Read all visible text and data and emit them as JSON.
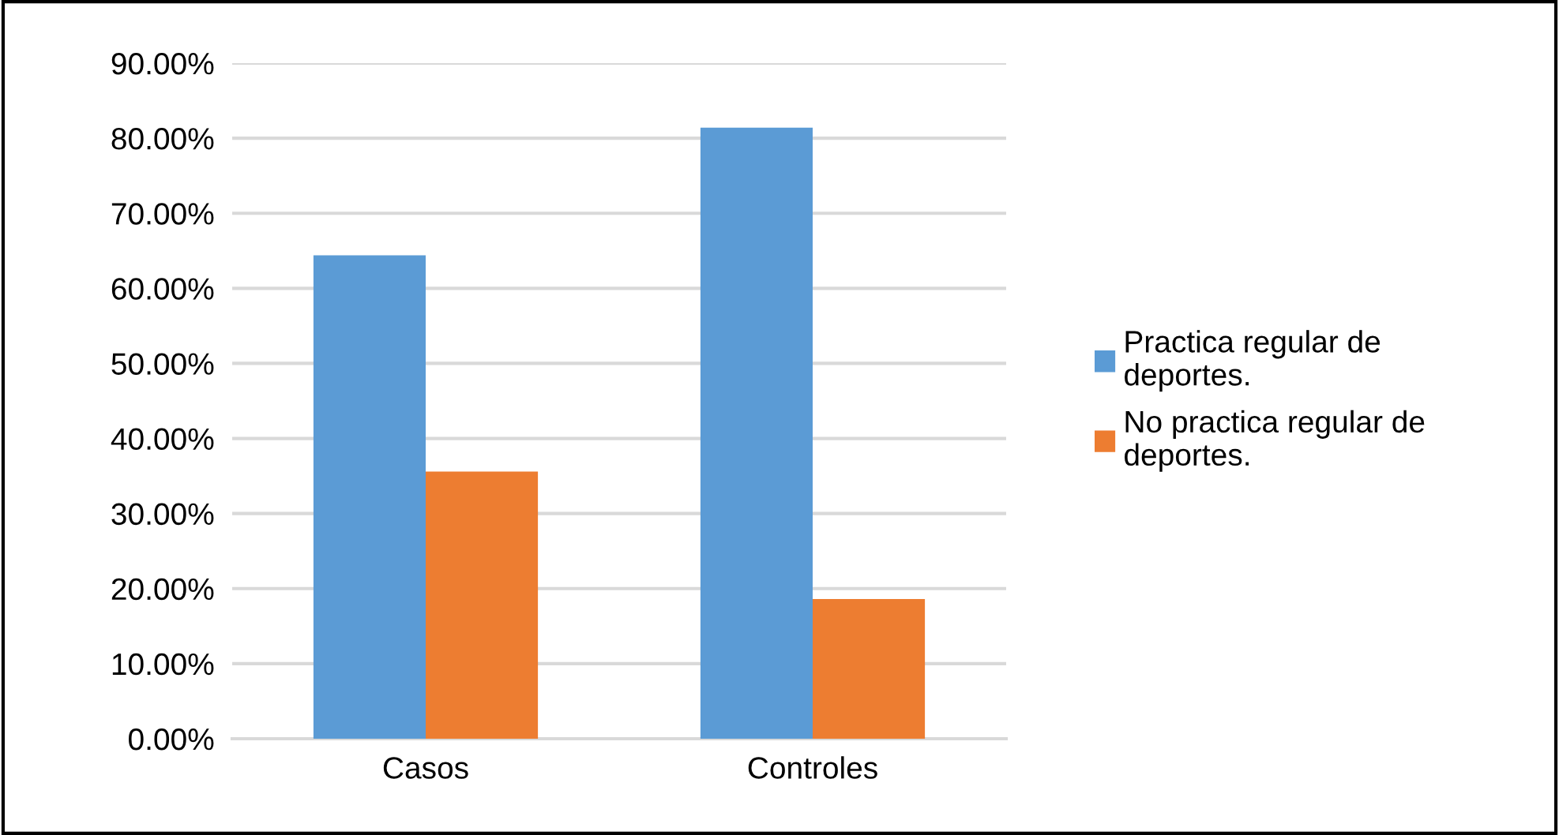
{
  "chart_data": {
    "type": "bar",
    "categories": [
      "Casos",
      "Controles"
    ],
    "series": [
      {
        "name": "Practica regular de deportes.",
        "color": "#5b9bd5",
        "values": [
          64.4,
          81.4
        ]
      },
      {
        "name": "No practica regular de deportes.",
        "color": "#ed7d31",
        "values": [
          35.6,
          18.6
        ]
      }
    ],
    "ylim": [
      0,
      90
    ],
    "yticks": [
      {
        "value": 0,
        "label": "0.00%"
      },
      {
        "value": 10,
        "label": "10.00%"
      },
      {
        "value": 20,
        "label": "20.00%"
      },
      {
        "value": 30,
        "label": "30.00%"
      },
      {
        "value": 40,
        "label": "40.00%"
      },
      {
        "value": 50,
        "label": "50.00%"
      },
      {
        "value": 60,
        "label": "60.00%"
      },
      {
        "value": 70,
        "label": "70.00%"
      },
      {
        "value": 80,
        "label": "80.00%"
      },
      {
        "value": 90,
        "label": "90.00%"
      }
    ],
    "grid": "y",
    "legend": "right"
  }
}
